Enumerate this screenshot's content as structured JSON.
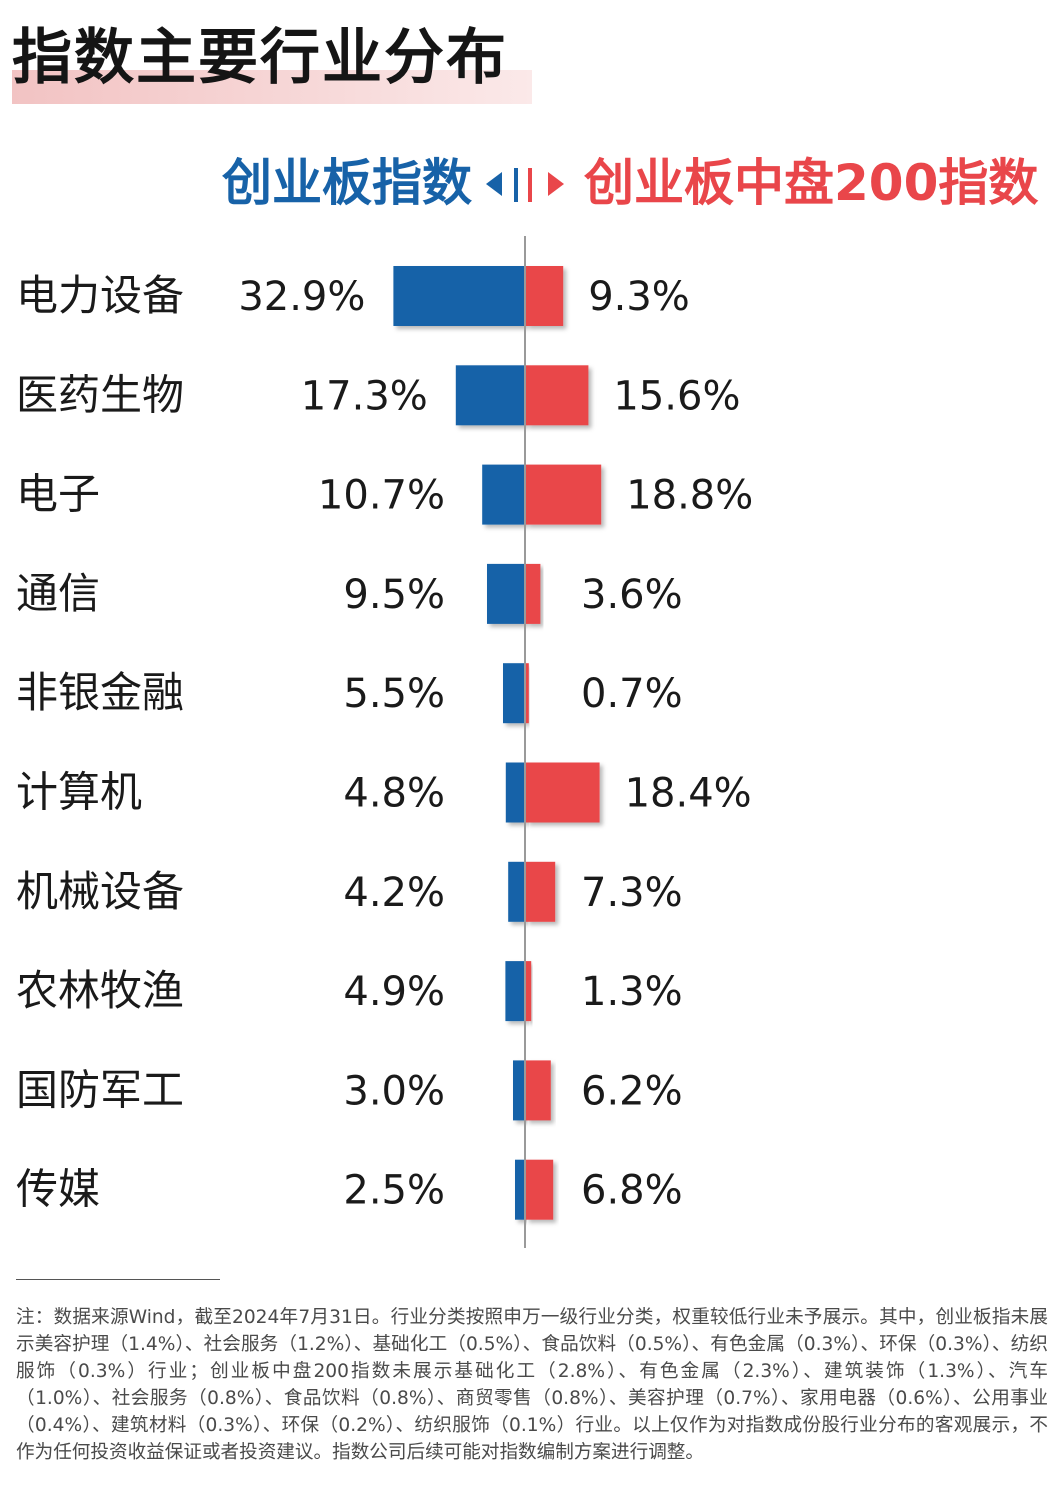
{
  "title": "指数主要行业分布",
  "legend": {
    "left_label": "创业板指数",
    "right_label": "创业板中盘200指数"
  },
  "colors": {
    "left_series": "#1762a8",
    "right_series": "#e9464a",
    "axis": "#9a9a9a"
  },
  "chart_data": {
    "type": "bar",
    "orientation": "horizontal-butterfly",
    "categories": [
      "电力设备",
      "医药生物",
      "电子",
      "通信",
      "非银金融",
      "计算机",
      "机械设备",
      "农林牧渔",
      "国防军工",
      "传媒"
    ],
    "series": [
      {
        "name": "创业板指数",
        "values": [
          32.9,
          17.3,
          10.7,
          9.5,
          5.5,
          4.8,
          4.2,
          4.9,
          3.0,
          2.5
        ],
        "labels": [
          "32.9%",
          "17.3%",
          "10.7%",
          "9.5%",
          "5.5%",
          "4.8%",
          "4.2%",
          "4.9%",
          "3.0%",
          "2.5%"
        ]
      },
      {
        "name": "创业板中盘200指数",
        "values": [
          9.3,
          15.6,
          18.8,
          3.6,
          0.7,
          18.4,
          7.3,
          1.3,
          6.2,
          6.8
        ],
        "labels": [
          "9.3%",
          "15.6%",
          "18.8%",
          "3.6%",
          "0.7%",
          "18.4%",
          "7.3%",
          "1.3%",
          "6.2%",
          "6.8%"
        ]
      }
    ],
    "unit": "%"
  },
  "footnote": "注：数据来源Wind，截至2024年7月31日。行业分类按照申万一级行业分类，权重较低行业未予展示。其中，创业板指未展示美容护理（1.4%）、社会服务（1.2%）、基础化工（0.5%）、食品饮料（0.5%）、有色金属（0.3%）、环保（0.3%）、纺织服饰（0.3%）行业；创业板中盘200指数未展示基础化工（2.8%）、有色金属（2.3%）、建筑装饰（1.3%）、汽车（1.0%）、社会服务（0.8%）、食品饮料（0.8%）、商贸零售（0.8%）、美容护理（0.7%）、家用电器（0.6%）、公用事业（0.4%）、建筑材料（0.3%）、环保（0.2%）、纺织服饰（0.1%）行业。以上仅作为对指数成份股行业分布的客观展示，不作为任何投资收益保证或者投资建议。指数公司后续可能对指数编制方案进行调整。"
}
